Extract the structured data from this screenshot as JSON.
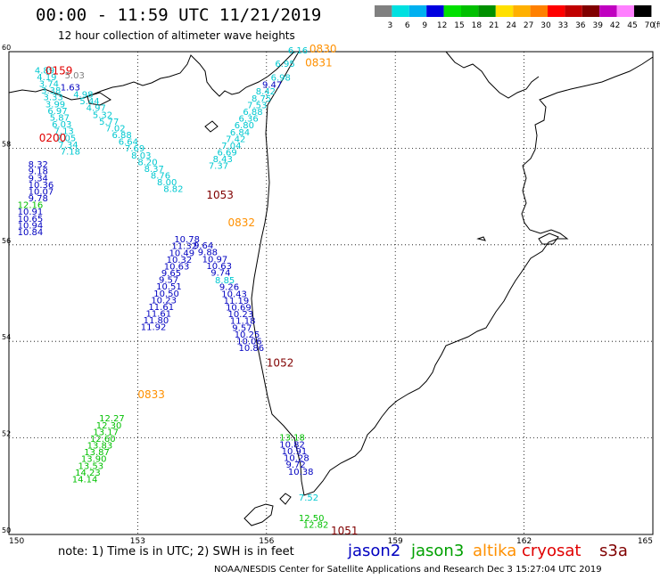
{
  "header": {
    "title": "00:00 - 11:59 UTC 11/21/2019",
    "subtitle": "12 hour collection of altimeter wave heights"
  },
  "scale": {
    "labels": [
      "3",
      "6",
      "9",
      "12",
      "15",
      "18",
      "21",
      "24",
      "27",
      "30",
      "33",
      "36",
      "39",
      "42",
      "45",
      "70"
    ],
    "unit": "(ft)",
    "colors": [
      "#808080",
      "#00e0e0",
      "#00b0f0",
      "#0000e0",
      "#00e000",
      "#00c000",
      "#009000",
      "#ffe000",
      "#ffb000",
      "#ff8000",
      "#ff0000",
      "#c00000",
      "#800000",
      "#c000c0",
      "#ff80ff",
      "#000000"
    ]
  },
  "axes": {
    "lon_labels": [
      "150",
      "153",
      "156",
      "159",
      "162",
      "165"
    ],
    "lat_labels": [
      "60",
      "58",
      "56",
      "54",
      "52",
      "50"
    ]
  },
  "footer": {
    "note": "note:  1) Time is in UTC; 2) SWH is in feet",
    "credit": "NOAA/NESDIS Center for Satellite Applications and Research   Dec  3 15:27:04 UTC 2019"
  },
  "legend": [
    {
      "name": "jason2",
      "color": "#0000c0"
    },
    {
      "name": "jason3",
      "color": "#00a000"
    },
    {
      "name": "altika",
      "color": "#ff9000"
    },
    {
      "name": "cryosat",
      "color": "#e00000"
    },
    {
      "name": "s3a",
      "color": "#800000"
    }
  ],
  "time_labels": [
    {
      "text": "0159",
      "color": "#e00000",
      "lon": 150.85,
      "lat": 59.53
    },
    {
      "text": "0200",
      "color": "#e00000",
      "lon": 150.7,
      "lat": 58.14
    },
    {
      "text": "0830",
      "color": "#ff9000",
      "lon": 157.0,
      "lat": 59.98
    },
    {
      "text": "0831",
      "color": "#ff9000",
      "lon": 156.9,
      "lat": 59.7
    },
    {
      "text": "1053",
      "color": "#800000",
      "lon": 154.6,
      "lat": 56.96
    },
    {
      "text": "0832",
      "color": "#ff9000",
      "lon": 155.1,
      "lat": 56.38
    },
    {
      "text": "1052",
      "color": "#800000",
      "lon": 156.0,
      "lat": 53.48
    },
    {
      "text": "0833",
      "color": "#ff9000",
      "lon": 153.0,
      "lat": 52.82
    },
    {
      "text": "1051",
      "color": "#800000",
      "lon": 157.5,
      "lat": 50.0
    }
  ],
  "tracks": [
    {
      "color": "#00c8d0",
      "lon0": 150.6,
      "lat0": 59.55,
      "dlon": 0.05,
      "dlat": -0.14,
      "values": [
        "4.89",
        "4.19",
        "3.74",
        "3.38",
        "3.33",
        "3.99",
        "6.97",
        "5.87",
        "6.03",
        "7.13",
        "7.05",
        "7.34",
        "7.18"
      ]
    },
    {
      "color": "#0000c0",
      "lon0": 150.45,
      "lat0": 57.6,
      "dlon": 0,
      "dlat": -0.14,
      "values": [
        "8.32",
        "9.18",
        "9.34",
        "10.36",
        "10.07",
        "9.78"
      ]
    },
    {
      "color": "#00c000",
      "lon0": 150.2,
      "lat0": 56.76,
      "dlon": 0,
      "dlat": 0,
      "values": [
        "12.16"
      ]
    },
    {
      "color": "#0000c0",
      "lon0": 150.2,
      "lat0": 56.62,
      "dlon": 0,
      "dlat": -0.14,
      "values": [
        "10.91",
        "10.65",
        "10.94",
        "10.84"
      ]
    },
    {
      "color": "#808080",
      "lon0": 151.3,
      "lat0": 59.45,
      "dlon": 0,
      "dlat": 0,
      "values": [
        "5.03"
      ]
    },
    {
      "color": "#0000c0",
      "lon0": 151.2,
      "lat0": 59.2,
      "dlon": 0,
      "dlat": 0,
      "values": [
        "1.63"
      ]
    },
    {
      "color": "#00c8d0",
      "lon0": 151.5,
      "lat0": 59.05,
      "dlon": 0.15,
      "dlat": -0.14,
      "values": [
        "4.98",
        "5.44",
        "4.97",
        "5.32",
        "5.77",
        "7.02",
        "6.88",
        "6.64",
        "7.69",
        "8.03",
        "8.20",
        "8.37",
        "8.76",
        "8.00",
        "8.82"
      ]
    },
    {
      "color": "#0000c0",
      "lon0": 153.85,
      "lat0": 56.05,
      "dlon": -0.06,
      "dlat": -0.14,
      "values": [
        "10.78",
        "11.32",
        "10.49",
        "10.32",
        "10.63",
        "9.65",
        "9.57",
        "10.51",
        "10.50",
        "10.23",
        "11.61",
        "11.61",
        "11.80",
        "11.92"
      ]
    },
    {
      "color": "#00c000",
      "lon0": 152.1,
      "lat0": 52.34,
      "dlon": -0.07,
      "dlat": -0.14,
      "values": [
        "12.27",
        "12.30",
        "13.17",
        "12.60",
        "13.83",
        "13.87",
        "13.90",
        "13.53",
        "14.23",
        "14.14"
      ]
    },
    {
      "color": "#00c8d0",
      "lon0": 156.5,
      "lat0": 59.96,
      "dlon": 0,
      "dlat": 0,
      "values": [
        "6.16"
      ]
    },
    {
      "color": "#00c8d0",
      "lon0": 156.2,
      "lat0": 59.69,
      "dlon": 0,
      "dlat": 0,
      "values": [
        "6.95"
      ]
    },
    {
      "color": "#00c8d0",
      "lon0": 156.1,
      "lat0": 59.4,
      "dlon": 0,
      "dlat": 0,
      "values": [
        "6.98"
      ]
    },
    {
      "color": "#0000c0",
      "lon0": 155.9,
      "lat0": 59.25,
      "dlon": 0,
      "dlat": 0,
      "values": [
        "9.47"
      ]
    },
    {
      "color": "#00c8d0",
      "lon0": 155.75,
      "lat0": 59.11,
      "dlon": -0.1,
      "dlat": -0.14,
      "values": [
        "8.42",
        "8.75",
        "7.53",
        "6.88",
        "6.36",
        "6.80",
        "6.84",
        "7.42",
        "7.04",
        "6.69",
        "8.43",
        "7.37"
      ]
    },
    {
      "color": "#0000c0",
      "lon0": 154.3,
      "lat0": 55.92,
      "dlon": 0.1,
      "dlat": -0.14,
      "values": [
        "9.64",
        "9.88",
        "10.97",
        "10.63",
        "9.74"
      ]
    },
    {
      "color": "#00c8d0",
      "lon0": 154.8,
      "lat0": 55.2,
      "dlon": 0,
      "dlat": 0,
      "values": [
        "8.85"
      ]
    },
    {
      "color": "#0000c0",
      "lon0": 154.9,
      "lat0": 55.06,
      "dlon": 0.05,
      "dlat": -0.14,
      "values": [
        "9.26",
        "10.43",
        "11.19",
        "10.69",
        "10.23",
        "11.18",
        "9.57",
        "10.25",
        "10.06",
        "10.86"
      ]
    },
    {
      "color": "#00c000",
      "lon0": 156.3,
      "lat0": 51.95,
      "dlon": 0,
      "dlat": 0,
      "values": [
        "13.18"
      ]
    },
    {
      "color": "#0000c0",
      "lon0": 156.3,
      "lat0": 51.8,
      "dlon": 0.05,
      "dlat": -0.14,
      "values": [
        "10.82",
        "10.91",
        "10.28",
        "9.72",
        "10.38"
      ]
    },
    {
      "color": "#00c8d0",
      "lon0": 156.75,
      "lat0": 50.7,
      "dlon": 0,
      "dlat": 0,
      "values": [
        "7.52"
      ]
    },
    {
      "color": "#00c000",
      "lon0": 156.75,
      "lat0": 50.28,
      "dlon": 0.1,
      "dlat": -0.14,
      "values": [
        "12.50",
        "12.82"
      ]
    }
  ]
}
